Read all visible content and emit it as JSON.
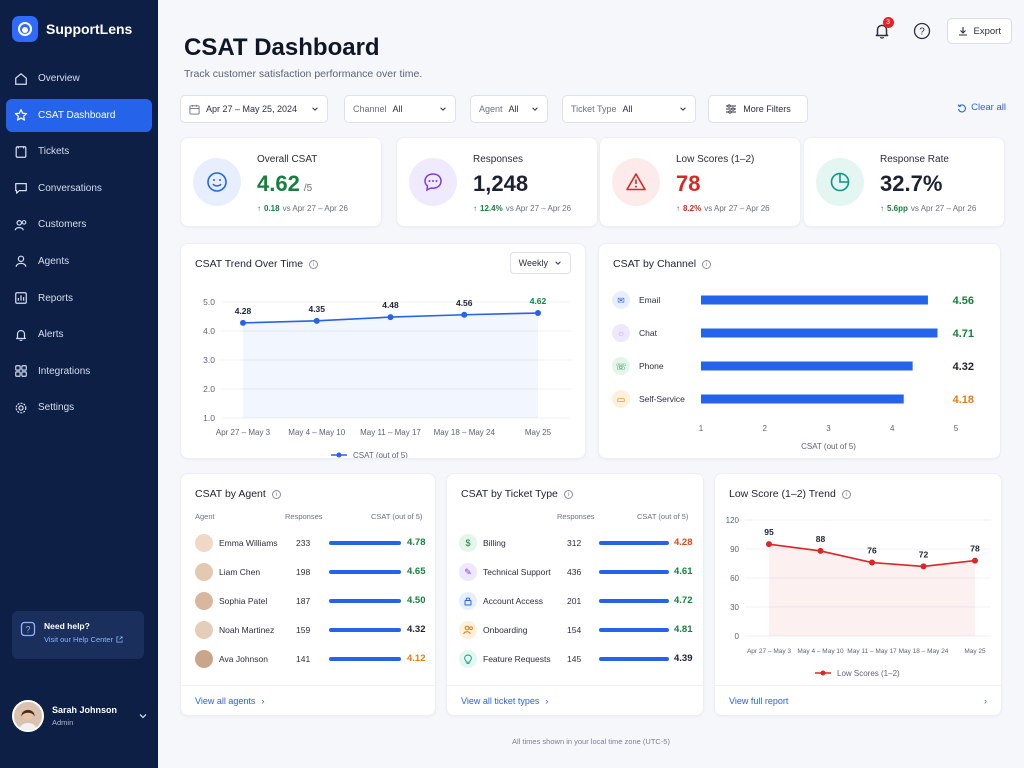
{
  "app": {
    "name": "SupportLens"
  },
  "nav": [
    {
      "label": "Overview",
      "icon": "home-icon",
      "active": false
    },
    {
      "label": "CSAT Dashboard",
      "icon": "star-icon",
      "active": true
    },
    {
      "label": "Tickets",
      "icon": "ticket-icon",
      "active": false
    },
    {
      "label": "Conversations",
      "icon": "chat-icon",
      "active": false
    },
    {
      "label": "Customers",
      "icon": "users-icon",
      "active": false
    },
    {
      "label": "Agents",
      "icon": "agent-icon",
      "active": false
    },
    {
      "label": "Reports",
      "icon": "reports-icon",
      "active": false
    },
    {
      "label": "Alerts",
      "icon": "bell-icon",
      "active": false
    },
    {
      "label": "Integrations",
      "icon": "grid-icon",
      "active": false
    },
    {
      "label": "Settings",
      "icon": "gear-icon",
      "active": false
    }
  ],
  "help": {
    "title": "Need help?",
    "link": "Visit our Help Center"
  },
  "user": {
    "name": "Sarah Johnson",
    "role": "Admin"
  },
  "header": {
    "title": "CSAT Dashboard",
    "subtitle": "Track customer satisfaction performance over time.",
    "notification_count": "3",
    "export_label": "Export"
  },
  "filters": {
    "date": "Apr 27 – May 25, 2024",
    "channel_label": "Channel",
    "channel_value": "All",
    "agent_label": "Agent",
    "agent_value": "All",
    "ticket_label": "Ticket Type",
    "ticket_value": "All",
    "more": "More Filters",
    "clear": "Clear all"
  },
  "kpis": [
    {
      "label": "Overall CSAT",
      "value": "4.62",
      "suffix": "/5",
      "delta": "0.18",
      "compare": "vs Apr 27 – Apr 26",
      "value_color": "#15803d",
      "delta_color": "#15803d",
      "arrow": "↑"
    },
    {
      "label": "Responses",
      "value": "1,248",
      "suffix": "",
      "delta": "12.4%",
      "compare": "vs Apr 27 – Apr 26",
      "value_color": "#1d2233",
      "delta_color": "#15803d",
      "arrow": "↑"
    },
    {
      "label": "Low Scores (1–2)",
      "value": "78",
      "suffix": "",
      "delta": "8.2%",
      "compare": "vs Apr 27 – Apr 26",
      "value_color": "#dc2626",
      "delta_color": "#dc2626",
      "arrow": "↑"
    },
    {
      "label": "Response Rate",
      "value": "32.7%",
      "suffix": "",
      "delta": "5.6pp",
      "compare": "vs Apr 27 – Apr 26",
      "value_color": "#1d2233",
      "delta_color": "#15803d",
      "arrow": "↑"
    }
  ],
  "trend": {
    "title": "CSAT Trend Over Time",
    "period": "Weekly",
    "legend": "CSAT (out of 5)"
  },
  "channel": {
    "title": "CSAT by Channel",
    "axis_label": "CSAT (out of 5)"
  },
  "agents": {
    "title": "CSAT by Agent",
    "col_agent": "Agent",
    "col_responses": "Responses",
    "col_score": "CSAT (out of 5)",
    "rows": [
      {
        "name": "Emma Williams",
        "responses": "233",
        "score": "4.78",
        "color": "#15803d"
      },
      {
        "name": "Liam Chen",
        "responses": "198",
        "score": "4.65",
        "color": "#15803d"
      },
      {
        "name": "Sophia Patel",
        "responses": "187",
        "score": "4.50",
        "color": "#15803d"
      },
      {
        "name": "Noah Martinez",
        "responses": "159",
        "score": "4.32",
        "color": "#1d2233"
      },
      {
        "name": "Ava Johnson",
        "responses": "141",
        "score": "4.12",
        "color": "#ea7a12"
      }
    ],
    "footer": "View all agents"
  },
  "ticket_types": {
    "title": "CSAT by Ticket Type",
    "col_responses": "Responses",
    "col_score": "CSAT (out of 5)",
    "rows": [
      {
        "name": "Billing",
        "responses": "312",
        "score": "4.28",
        "color": "#dc4a1a",
        "icon": "dollar-icon"
      },
      {
        "name": "Technical Support",
        "responses": "436",
        "score": "4.61",
        "color": "#15803d",
        "icon": "wrench-icon"
      },
      {
        "name": "Account Access",
        "responses": "201",
        "score": "4.72",
        "color": "#15803d",
        "icon": "lock-icon"
      },
      {
        "name": "Onboarding",
        "responses": "154",
        "score": "4.81",
        "color": "#15803d",
        "icon": "people-icon"
      },
      {
        "name": "Feature Requests",
        "responses": "145",
        "score": "4.39",
        "color": "#1d2233",
        "icon": "bulb-icon"
      }
    ],
    "footer": "View all ticket types"
  },
  "lowscore": {
    "title": "Low Score (1–2) Trend",
    "legend": "Low Scores (1–2)",
    "footer": "View full report"
  },
  "footnote": "All times shown in your local time zone (UTC-5)",
  "chart_data": [
    {
      "type": "line",
      "title": "CSAT Trend Over Time",
      "categories": [
        "Apr 27 – May 3",
        "May 4 – May 10",
        "May 11 – May 17",
        "May 18 – May 24",
        "May 25"
      ],
      "series": [
        {
          "name": "CSAT (out of 5)",
          "values": [
            4.28,
            4.35,
            4.48,
            4.56,
            4.62
          ]
        }
      ],
      "ylim": [
        1.0,
        5.0
      ],
      "yticks": [
        "5.0",
        "4.0",
        "3.0",
        "2.0",
        "1.0"
      ],
      "color": "#2563eb"
    },
    {
      "type": "bar",
      "title": "CSAT by Channel",
      "categories": [
        "Email",
        "Chat",
        "Phone",
        "Self-Service"
      ],
      "values": [
        4.56,
        4.71,
        4.32,
        4.18
      ],
      "value_colors": [
        "#15803d",
        "#15803d",
        "#1d2233",
        "#ea7a12"
      ],
      "xlim": [
        1,
        5
      ],
      "xticks": [
        "1",
        "2",
        "3",
        "4",
        "5"
      ],
      "xlabel": "CSAT (out of 5)"
    },
    {
      "type": "line",
      "title": "Low Score (1–2) Trend",
      "categories": [
        "Apr 27 – May 3",
        "May 4 – May 10",
        "May 11 – May 17",
        "May 18 – May 24",
        "May 25"
      ],
      "series": [
        {
          "name": "Low Scores (1–2)",
          "values": [
            95,
            88,
            76,
            72,
            78
          ]
        }
      ],
      "ylim": [
        0,
        120
      ],
      "yticks": [
        "120",
        "90",
        "60",
        "30",
        "0"
      ],
      "color": "#dc2626"
    }
  ]
}
